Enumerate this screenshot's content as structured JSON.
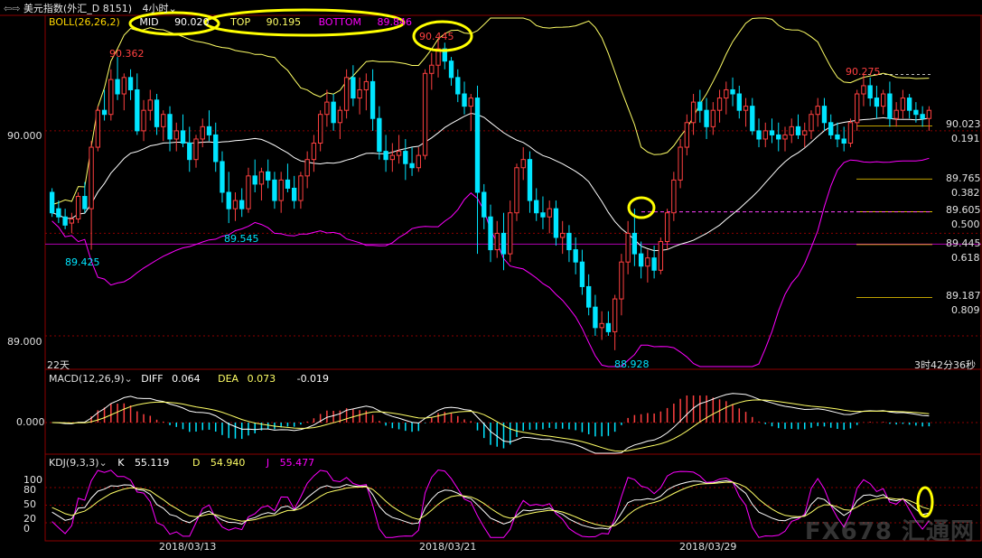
{
  "window": {
    "title": "美元指数(外汇_D 8151)",
    "timeframe": "4小时"
  },
  "boll_header": {
    "label": "BOLL(26,26,2)",
    "mid_label": "MID",
    "mid_value": "90.020",
    "top_label": "TOP",
    "top_value": "90.195",
    "bottom_label": "BOTTOM",
    "bottom_value": "89.846"
  },
  "macd_header": {
    "label": "MACD(12,26,9)",
    "diff_label": "DIFF",
    "diff_value": "0.064",
    "dea_label": "DEA",
    "dea_value": "0.073",
    "macd_value": "-0.019"
  },
  "kdj_header": {
    "label": "KDJ(9,3,3)",
    "k_label": "K",
    "k_value": "55.119",
    "d_label": "D",
    "d_value": "54.940",
    "j_label": "J",
    "j_value": "55.477"
  },
  "axis": {
    "price_ticks": [
      "90.000",
      "89.000"
    ],
    "macd_tick": "0.000",
    "kdj_ticks": [
      "100",
      "80",
      "50",
      "20",
      "0"
    ],
    "dates": [
      "2018/03/13",
      "2018/03/21",
      "2018/03/29"
    ]
  },
  "annotations": {
    "high1": "90.362",
    "high2": "90.445",
    "high3": "90.275",
    "low1": "89.545",
    "low2": "89.425",
    "low3": "88.928",
    "period": "22天",
    "countdown": "3时42分36秒"
  },
  "fib_levels": [
    {
      "price": "90.023",
      "ratio": "0.191"
    },
    {
      "price": "89.765",
      "ratio": "0.382"
    },
    {
      "price": "89.605",
      "ratio": "0.500"
    },
    {
      "price": "89.445",
      "ratio": "0.618"
    },
    {
      "price": "89.187",
      "ratio": "0.809"
    }
  ],
  "watermark": "FX678 汇通网",
  "colors": {
    "up": "#ff4040",
    "down": "#00e5ff",
    "mid_line": "#ffffff",
    "top_line": "#ffff66",
    "bottom_line": "#ff00ff",
    "grid": "#8b0000",
    "highlight": "#ffff00",
    "fib_line": "#ffd700"
  },
  "chart_data": {
    "type": "candlestick",
    "instrument": "美元指数",
    "interval": "4小时",
    "ylim": [
      88.85,
      90.55
    ],
    "candles_ohlc": [
      [
        89.7,
        89.72,
        89.58,
        89.6
      ],
      [
        89.62,
        89.66,
        89.55,
        89.58
      ],
      [
        89.58,
        89.62,
        89.52,
        89.54
      ],
      [
        89.55,
        89.6,
        89.5,
        89.57
      ],
      [
        89.57,
        89.7,
        89.55,
        89.68
      ],
      [
        89.68,
        89.75,
        89.6,
        89.62
      ],
      [
        89.62,
        89.95,
        89.42,
        89.92
      ],
      [
        89.92,
        90.12,
        89.9,
        90.1
      ],
      [
        90.1,
        90.2,
        90.05,
        90.08
      ],
      [
        90.08,
        90.3,
        90.05,
        90.25
      ],
      [
        90.25,
        90.36,
        90.15,
        90.18
      ],
      [
        90.18,
        90.28,
        90.1,
        90.26
      ],
      [
        90.26,
        90.3,
        90.15,
        90.2
      ],
      [
        90.2,
        90.28,
        89.98,
        90.0
      ],
      [
        90.0,
        90.15,
        89.95,
        90.1
      ],
      [
        90.1,
        90.2,
        90.05,
        90.15
      ],
      [
        90.15,
        90.18,
        89.98,
        90.02
      ],
      [
        90.02,
        90.1,
        89.95,
        90.08
      ],
      [
        90.08,
        90.12,
        89.9,
        89.96
      ],
      [
        89.96,
        90.04,
        89.9,
        90.0
      ],
      [
        90.0,
        90.08,
        89.92,
        89.94
      ],
      [
        89.94,
        90.02,
        89.8,
        89.86
      ],
      [
        89.86,
        89.98,
        89.82,
        89.96
      ],
      [
        89.96,
        90.06,
        89.92,
        90.02
      ],
      [
        90.02,
        90.1,
        89.95,
        89.98
      ],
      [
        89.98,
        90.04,
        89.8,
        89.85
      ],
      [
        89.85,
        89.9,
        89.65,
        89.7
      ],
      [
        89.7,
        89.8,
        89.55,
        89.62
      ],
      [
        89.62,
        89.7,
        89.56,
        89.66
      ],
      [
        89.66,
        89.72,
        89.58,
        89.62
      ],
      [
        89.62,
        89.82,
        89.6,
        89.78
      ],
      [
        89.78,
        89.86,
        89.7,
        89.74
      ],
      [
        89.74,
        89.82,
        89.66,
        89.8
      ],
      [
        89.8,
        89.86,
        89.72,
        89.76
      ],
      [
        89.76,
        89.8,
        89.62,
        89.66
      ],
      [
        89.66,
        89.8,
        89.6,
        89.76
      ],
      [
        89.76,
        89.84,
        89.7,
        89.72
      ],
      [
        89.72,
        89.78,
        89.62,
        89.66
      ],
      [
        89.66,
        89.8,
        89.62,
        89.78
      ],
      [
        89.78,
        89.9,
        89.72,
        89.86
      ],
      [
        89.86,
        89.98,
        89.8,
        89.94
      ],
      [
        89.94,
        90.1,
        89.9,
        90.08
      ],
      [
        90.08,
        90.2,
        90.02,
        90.14
      ],
      [
        90.14,
        90.18,
        90.0,
        90.04
      ],
      [
        90.04,
        90.12,
        89.96,
        90.1
      ],
      [
        90.1,
        90.3,
        90.06,
        90.26
      ],
      [
        90.26,
        90.32,
        90.12,
        90.16
      ],
      [
        90.16,
        90.26,
        90.08,
        90.2
      ],
      [
        90.2,
        90.28,
        90.1,
        90.24
      ],
      [
        90.24,
        90.3,
        90.0,
        90.06
      ],
      [
        90.06,
        90.12,
        89.86,
        89.9
      ],
      [
        89.9,
        89.98,
        89.8,
        89.86
      ],
      [
        89.86,
        89.94,
        89.8,
        89.88
      ],
      [
        89.88,
        89.98,
        89.84,
        89.9
      ],
      [
        89.9,
        89.96,
        89.76,
        89.84
      ],
      [
        89.84,
        89.92,
        89.78,
        89.82
      ],
      [
        89.82,
        89.92,
        89.8,
        89.88
      ],
      [
        89.88,
        90.3,
        89.86,
        90.28
      ],
      [
        90.28,
        90.38,
        90.2,
        90.32
      ],
      [
        90.32,
        90.445,
        90.26,
        90.4
      ],
      [
        90.4,
        90.43,
        90.3,
        90.34
      ],
      [
        90.34,
        90.36,
        90.22,
        90.26
      ],
      [
        90.26,
        90.3,
        90.14,
        90.18
      ],
      [
        90.18,
        90.24,
        90.08,
        90.12
      ],
      [
        90.12,
        90.18,
        90.0,
        90.16
      ],
      [
        90.16,
        90.22,
        89.4,
        89.7
      ],
      [
        89.7,
        89.74,
        89.52,
        89.58
      ],
      [
        89.58,
        89.64,
        89.36,
        89.42
      ],
      [
        89.42,
        89.56,
        89.38,
        89.5
      ],
      [
        89.5,
        89.6,
        89.32,
        89.4
      ],
      [
        89.4,
        89.66,
        89.36,
        89.6
      ],
      [
        89.6,
        89.84,
        89.56,
        89.82
      ],
      [
        89.82,
        89.92,
        89.76,
        89.86
      ],
      [
        89.86,
        89.9,
        89.6,
        89.66
      ],
      [
        89.66,
        89.72,
        89.56,
        89.6
      ],
      [
        89.6,
        89.68,
        89.52,
        89.58
      ],
      [
        89.58,
        89.66,
        89.5,
        89.62
      ],
      [
        89.62,
        89.66,
        89.44,
        89.48
      ],
      [
        89.48,
        89.56,
        89.4,
        89.5
      ],
      [
        89.5,
        89.54,
        89.36,
        89.42
      ],
      [
        89.42,
        89.48,
        89.3,
        89.36
      ],
      [
        89.36,
        89.42,
        89.2,
        89.24
      ],
      [
        89.24,
        89.3,
        89.1,
        89.14
      ],
      [
        89.14,
        89.2,
        89.0,
        89.04
      ],
      [
        89.04,
        89.12,
        88.98,
        89.06
      ],
      [
        89.06,
        89.12,
        89.0,
        89.02
      ],
      [
        89.02,
        89.2,
        88.93,
        89.18
      ],
      [
        89.18,
        89.4,
        89.1,
        89.36
      ],
      [
        89.36,
        89.56,
        89.3,
        89.5
      ],
      [
        89.5,
        89.62,
        89.34,
        89.4
      ],
      [
        89.4,
        89.46,
        89.28,
        89.34
      ],
      [
        89.34,
        89.42,
        89.26,
        89.38
      ],
      [
        89.38,
        89.44,
        89.28,
        89.32
      ],
      [
        89.32,
        89.48,
        89.3,
        89.46
      ],
      [
        89.46,
        89.62,
        89.42,
        89.6
      ],
      [
        89.6,
        89.8,
        89.56,
        89.76
      ],
      [
        89.76,
        89.96,
        89.72,
        89.92
      ],
      [
        89.92,
        90.08,
        89.88,
        90.04
      ],
      [
        90.04,
        90.18,
        89.98,
        90.14
      ],
      [
        90.14,
        90.2,
        90.04,
        90.1
      ],
      [
        90.1,
        90.16,
        89.96,
        90.02
      ],
      [
        90.02,
        90.14,
        89.98,
        90.1
      ],
      [
        90.1,
        90.2,
        90.04,
        90.16
      ],
      [
        90.16,
        90.24,
        90.08,
        90.2
      ],
      [
        90.2,
        90.26,
        90.12,
        90.18
      ],
      [
        90.18,
        90.22,
        90.06,
        90.1
      ],
      [
        90.1,
        90.16,
        90.02,
        90.12
      ],
      [
        90.12,
        90.16,
        89.98,
        90.0
      ],
      [
        90.0,
        90.06,
        89.92,
        89.96
      ],
      [
        89.96,
        90.04,
        89.92,
        90.0
      ],
      [
        90.0,
        90.06,
        89.94,
        89.98
      ],
      [
        89.98,
        90.04,
        89.9,
        89.96
      ],
      [
        89.96,
        90.02,
        89.9,
        89.98
      ],
      [
        89.98,
        90.06,
        89.94,
        90.02
      ],
      [
        90.02,
        90.08,
        89.96,
        89.98
      ],
      [
        89.98,
        90.04,
        89.92,
        90.0
      ],
      [
        90.0,
        90.1,
        89.96,
        90.08
      ],
      [
        90.08,
        90.16,
        90.02,
        90.12
      ],
      [
        90.12,
        90.16,
        90.0,
        90.04
      ],
      [
        90.04,
        90.08,
        89.96,
        89.98
      ],
      [
        89.98,
        90.04,
        89.92,
        89.96
      ],
      [
        89.96,
        90.02,
        89.9,
        89.94
      ],
      [
        89.94,
        90.06,
        89.92,
        90.04
      ],
      [
        90.04,
        90.2,
        90.0,
        90.18
      ],
      [
        90.18,
        90.275,
        90.12,
        90.22
      ],
      [
        90.22,
        90.26,
        90.12,
        90.16
      ],
      [
        90.16,
        90.22,
        90.06,
        90.12
      ],
      [
        90.12,
        90.2,
        90.08,
        90.18
      ],
      [
        90.18,
        90.24,
        90.02,
        90.06
      ],
      [
        90.06,
        90.14,
        90.02,
        90.1
      ],
      [
        90.1,
        90.2,
        90.06,
        90.16
      ],
      [
        90.16,
        90.18,
        90.06,
        90.1
      ],
      [
        90.1,
        90.14,
        90.04,
        90.08
      ],
      [
        90.08,
        90.12,
        90.02,
        90.06
      ],
      [
        90.06,
        90.12,
        90.0,
        90.1
      ]
    ],
    "fib_retracements": [
      {
        "ratio": 0.191,
        "price": 90.023
      },
      {
        "ratio": 0.382,
        "price": 89.765
      },
      {
        "ratio": 0.5,
        "price": 89.605
      },
      {
        "ratio": 0.618,
        "price": 89.445
      },
      {
        "ratio": 0.809,
        "price": 89.187
      }
    ],
    "boll": {
      "period": 26,
      "mid": 90.02,
      "top": 90.195,
      "bottom": 89.846
    },
    "macd": {
      "params": "12,26,9",
      "diff": 0.064,
      "dea": 0.073,
      "macd": -0.019
    },
    "kdj": {
      "params": "9,3,3",
      "k": 55.119,
      "d": 54.94,
      "j": 55.477
    },
    "x_date_labels": [
      "2018/03/13",
      "2018/03/21",
      "2018/03/29"
    ]
  }
}
